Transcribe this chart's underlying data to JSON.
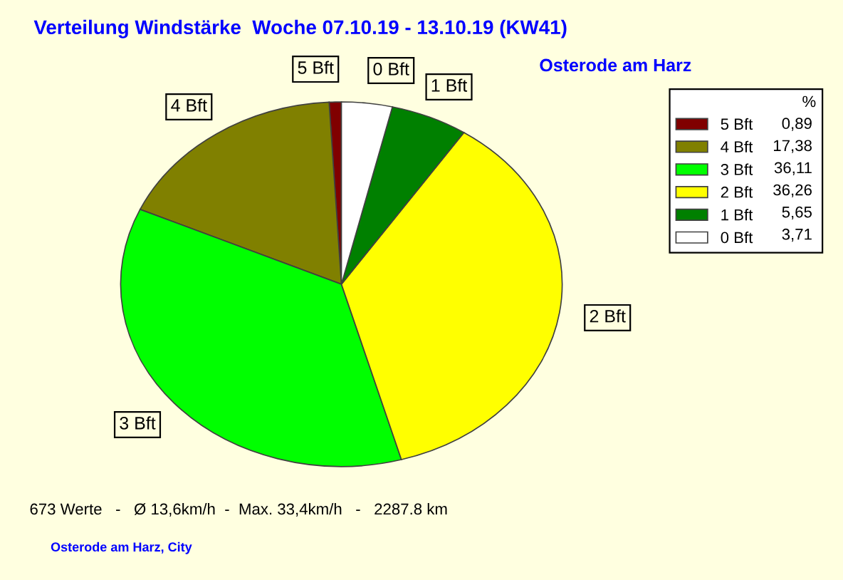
{
  "chart_data": {
    "type": "pie",
    "title": "Verteilung Windstärke  Woche 07.10.19 - 13.10.19 (KW41)",
    "subtitle": "Osterode am Harz",
    "categories": [
      "5 Bft",
      "4 Bft",
      "3 Bft",
      "2 Bft",
      "1 Bft",
      "0 Bft"
    ],
    "values": [
      0.89,
      17.38,
      36.11,
      36.26,
      5.65,
      3.71
    ],
    "value_labels": [
      "0,89",
      "17,38",
      "36,11",
      "36,26",
      "5,65",
      "3,71"
    ],
    "colors": [
      "#800000",
      "#808000",
      "#00ff00",
      "#ffff00",
      "#008000",
      "#ffffff"
    ],
    "legend": "top right",
    "legend_title": "%",
    "annotations": [
      "673 Werte   -   Ø 13,6km/h  -  Max. 33,4km/h   -   2287.8 km",
      "Osterode am Harz, City"
    ]
  }
}
